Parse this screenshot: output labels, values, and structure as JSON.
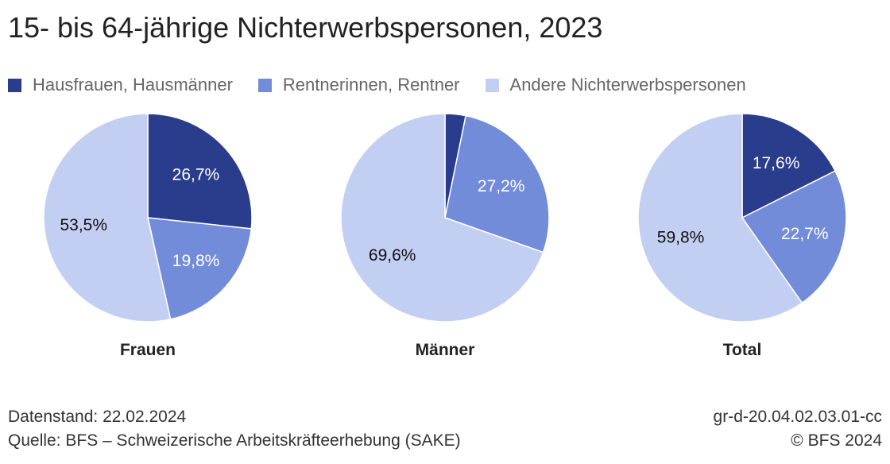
{
  "title": "15- bis 64-jährige Nichterwerbspersonen, 2023",
  "colors": {
    "hausfrauen": "#2a3d8c",
    "rentner": "#738cd9",
    "andere": "#c3cff2"
  },
  "legend": [
    {
      "label": "Hausfrauen, Hausmänner",
      "color": "#2a3d8c"
    },
    {
      "label": "Rentnerinnen, Rentner",
      "color": "#738cd9"
    },
    {
      "label": "Andere Nichterwerbspersonen",
      "color": "#c3cff2"
    }
  ],
  "chart_data": [
    {
      "type": "pie",
      "title": "Frauen",
      "slices": [
        {
          "series": "Hausfrauen, Hausmänner",
          "value": 26.7,
          "label": "26,7%"
        },
        {
          "series": "Rentnerinnen, Rentner",
          "value": 19.8,
          "label": "19,8%"
        },
        {
          "series": "Andere Nichterwerbspersonen",
          "value": 53.5,
          "label": "53,5%"
        }
      ]
    },
    {
      "type": "pie",
      "title": "Männer",
      "slices": [
        {
          "series": "Hausfrauen, Hausmänner",
          "value": 3.2,
          "label": ""
        },
        {
          "series": "Rentnerinnen, Rentner",
          "value": 27.2,
          "label": "27,2%"
        },
        {
          "series": "Andere Nichterwerbspersonen",
          "value": 69.6,
          "label": "69,6%"
        }
      ]
    },
    {
      "type": "pie",
      "title": "Total",
      "slices": [
        {
          "series": "Hausfrauen, Hausmänner",
          "value": 17.6,
          "label": "17,6%"
        },
        {
          "series": "Rentnerinnen, Rentner",
          "value": 22.7,
          "label": "22,7%"
        },
        {
          "series": "Andere Nichterwerbspersonen",
          "value": 59.8,
          "label": "59,8%"
        }
      ]
    }
  ],
  "footer": {
    "datenstand": "Datenstand: 22.02.2024",
    "quelle": "Quelle: BFS – Schweizerische Arbeitskräfteerhebung (SAKE)",
    "code": "gr-d-20.04.02.03.01-cc",
    "copyright": "© BFS 2024"
  }
}
